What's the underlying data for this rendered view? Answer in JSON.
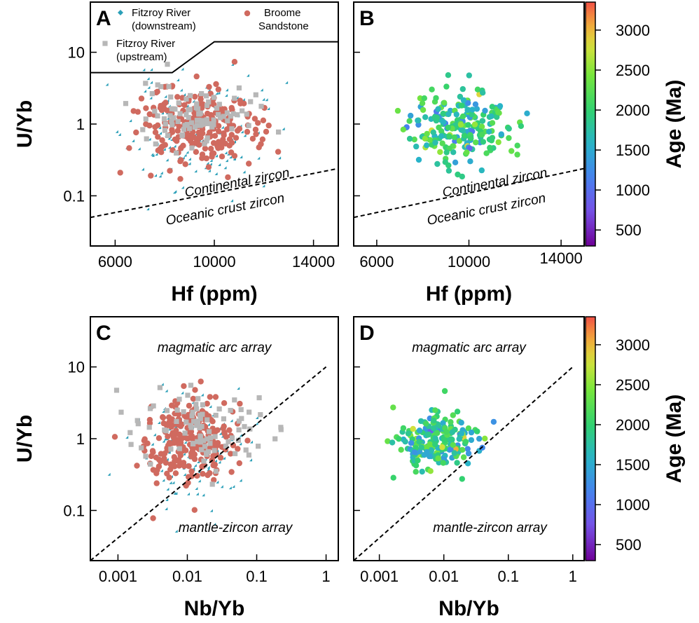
{
  "figure": {
    "colorbar_title": "Age (Ma)",
    "colorbar_ticks": [
      500,
      1000,
      1500,
      2000,
      2500,
      3000
    ],
    "colors": {
      "fitzroy_downstream": "#2a9fb8",
      "broome_sandstone": "#d06a5f",
      "fitzroy_upstream": "#b7b7b7"
    }
  },
  "chart_data": [
    {
      "panel": "A",
      "type": "scatter",
      "xlabel": "Hf (ppm)",
      "ylabel": "U/Yb",
      "xlim": [
        5000,
        15000
      ],
      "ylim": [
        0.02,
        50
      ],
      "ylog": true,
      "xticks": [
        6000,
        10000,
        14000
      ],
      "yticks": [
        0.1,
        1,
        10
      ],
      "legend": [
        "Fitzroy River (downstream)",
        "Broome Sandstone",
        "Fitzroy River (upstream)"
      ],
      "annotations": [
        "Continental zircon",
        "Oceanic crust zircon"
      ],
      "boundary_line": {
        "x": [
          5000,
          15000
        ],
        "y": [
          0.05,
          0.24
        ]
      },
      "legend_box_line": {
        "x": [
          5000,
          8300,
          10000,
          15000
        ],
        "y": [
          5.2,
          5.2,
          14,
          14
        ]
      },
      "series": [
        {
          "name": "Fitzroy River (downstream)",
          "marker": "diamond",
          "color": "#2a9fb8",
          "n": 170,
          "seed": 11,
          "x_mean": 9200,
          "x_sd": 1300,
          "ly_mean": -0.12,
          "ly_sd": 0.38
        },
        {
          "name": "Broome Sandstone",
          "marker": "circle",
          "color": "#d06a5f",
          "n": 230,
          "seed": 23,
          "x_mean": 9300,
          "x_sd": 1200,
          "ly_mean": -0.05,
          "ly_sd": 0.28
        },
        {
          "name": "Fitzroy River (upstream)",
          "marker": "square",
          "color": "#b7b7b7",
          "n": 90,
          "seed": 37,
          "x_mean": 9400,
          "x_sd": 1100,
          "ly_mean": 0.15,
          "ly_sd": 0.22
        }
      ]
    },
    {
      "panel": "B",
      "type": "scatter",
      "xlabel": "Hf (ppm)",
      "ylabel": "",
      "xlim": [
        5000,
        15000
      ],
      "ylim": [
        0.02,
        50
      ],
      "ylog": true,
      "xticks": [
        6000,
        10000,
        14000
      ],
      "yticks": [
        0.1,
        1,
        10
      ],
      "color_by": "Age (Ma)",
      "annotations": [
        "Continental zircon",
        "Oceanic crust zircon"
      ],
      "boundary_line": {
        "x": [
          5000,
          15000
        ],
        "y": [
          0.05,
          0.24
        ]
      },
      "series": [
        {
          "name": "",
          "marker": "circle",
          "n": 220,
          "seed": 51,
          "x_mean": 9400,
          "x_sd": 1100,
          "ly_mean": -0.05,
          "ly_sd": 0.25,
          "age_mean": 1850,
          "age_sd": 380
        }
      ]
    },
    {
      "panel": "C",
      "type": "scatter",
      "xlabel": "Nb/Yb",
      "ylabel": "U/Yb",
      "xlim": [
        0.0004,
        1.5
      ],
      "ylim": [
        0.02,
        50
      ],
      "xlog": true,
      "ylog": true,
      "xticks": [
        0.001,
        0.01,
        0.1,
        1
      ],
      "xtick_labels": [
        "0.001",
        "0.01",
        "0.1",
        "1"
      ],
      "yticks": [
        0.1,
        1,
        10
      ],
      "annotations": [
        "magmatic arc array",
        "mantle-zircon array"
      ],
      "boundary_line": {
        "x": [
          0.0004,
          1
        ],
        "y": [
          0.02,
          10
        ]
      },
      "series": [
        {
          "name": "Fitzroy River (downstream)",
          "marker": "diamond",
          "color": "#2a9fb8",
          "n": 170,
          "seed": 61,
          "lx_mean": -2.0,
          "lx_sd": 0.42,
          "ly_mean": -0.12,
          "ly_sd": 0.35
        },
        {
          "name": "Broome Sandstone",
          "marker": "circle",
          "color": "#d06a5f",
          "n": 230,
          "seed": 73,
          "lx_mean": -1.95,
          "lx_sd": 0.35,
          "ly_mean": -0.05,
          "ly_sd": 0.28
        },
        {
          "name": "Fitzroy River (upstream)",
          "marker": "square",
          "color": "#b7b7b7",
          "n": 90,
          "seed": 89,
          "lx_mean": -1.9,
          "lx_sd": 0.5,
          "ly_mean": 0.15,
          "ly_sd": 0.25
        }
      ]
    },
    {
      "panel": "D",
      "type": "scatter",
      "xlabel": "Nb/Yb",
      "ylabel": "",
      "xlim": [
        0.0004,
        1.5
      ],
      "ylim": [
        0.02,
        50
      ],
      "xlog": true,
      "ylog": true,
      "xticks": [
        0.001,
        0.01,
        0.1,
        1
      ],
      "xtick_labels": [
        "0.001",
        "0.01",
        "0.1",
        "1"
      ],
      "yticks": [
        0.1,
        1,
        10
      ],
      "color_by": "Age (Ma)",
      "annotations": [
        "magmatic arc array",
        "mantle-zircon array"
      ],
      "boundary_line": {
        "x": [
          0.0004,
          1
        ],
        "y": [
          0.02,
          10
        ]
      },
      "series": [
        {
          "name": "",
          "marker": "circle",
          "n": 210,
          "seed": 97,
          "lx_mean": -2.1,
          "lx_sd": 0.3,
          "ly_mean": -0.05,
          "ly_sd": 0.22,
          "age_mean": 1850,
          "age_sd": 380
        }
      ]
    }
  ]
}
